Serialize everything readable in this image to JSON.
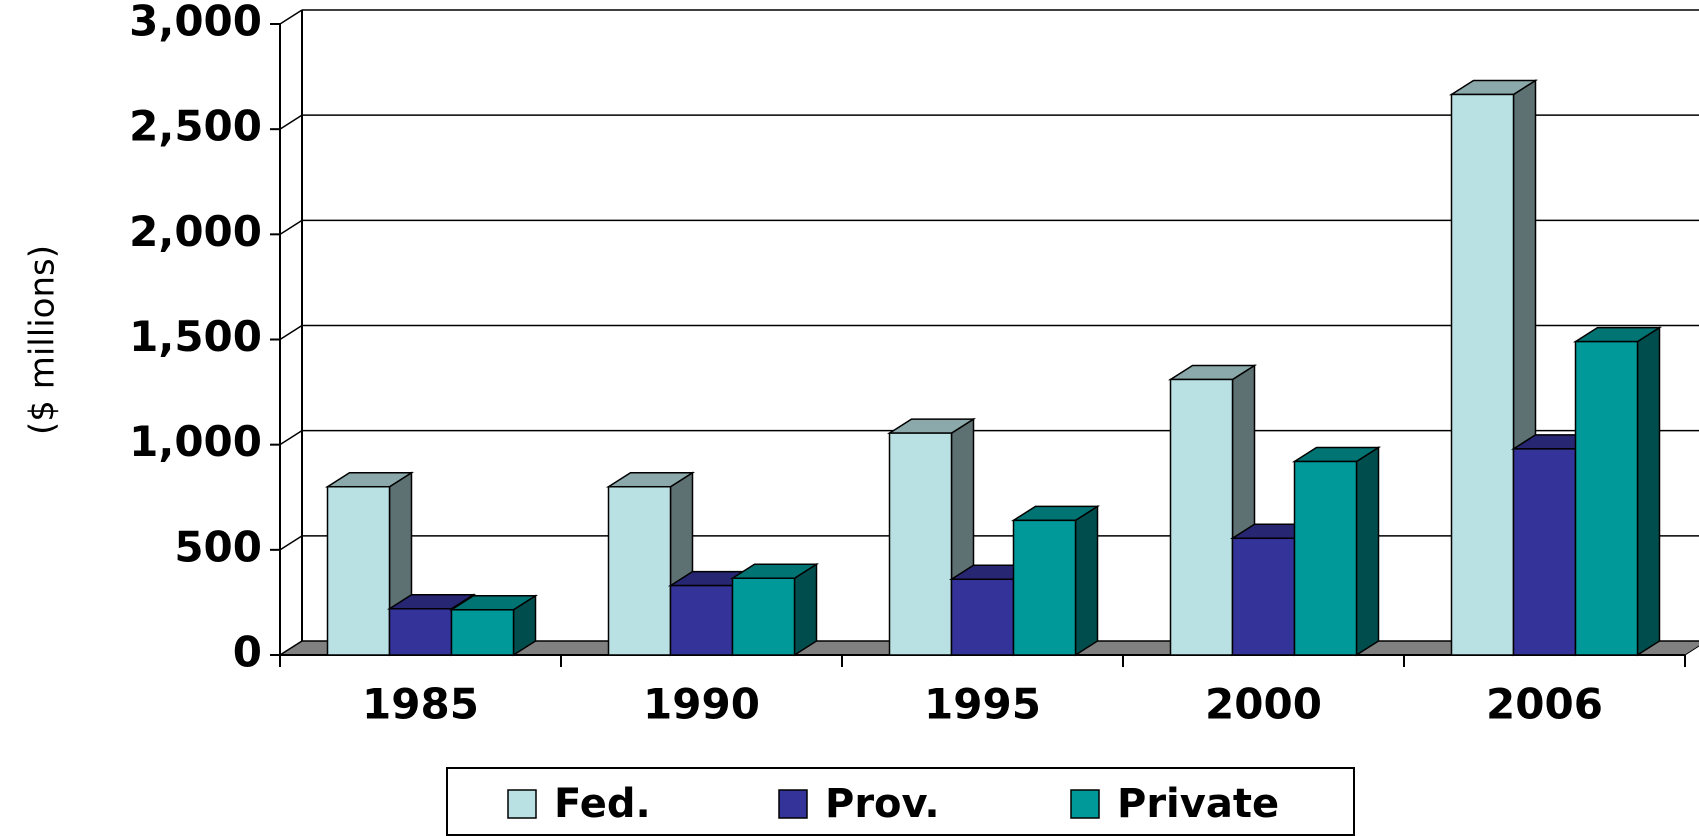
{
  "chart_data": {
    "type": "bar3d",
    "y_label": "($ millions)",
    "categories": [
      "1985",
      "1990",
      "1995",
      "2000",
      "2006"
    ],
    "series": [
      {
        "name": "Fed.",
        "color": "#b9e0e3",
        "values": [
          800,
          800,
          1055,
          1310,
          2665
        ]
      },
      {
        "name": "Prov.",
        "color": "#333399",
        "values": [
          220,
          330,
          360,
          555,
          980
        ]
      },
      {
        "name": "Private",
        "color": "#009999",
        "values": [
          215,
          365,
          640,
          920,
          1490
        ]
      }
    ],
    "ylim": [
      0,
      3000
    ],
    "yticks": [
      0,
      500,
      {
        "value": 1000,
        "label": "1,000"
      },
      {
        "value": 1500,
        "label": "1,500"
      },
      {
        "value": 2000,
        "label": "2,000"
      },
      {
        "value": 2500,
        "label": "2,500"
      },
      {
        "value": 3000,
        "label": "3,000"
      }
    ],
    "grid": true,
    "legend": "bottom"
  }
}
